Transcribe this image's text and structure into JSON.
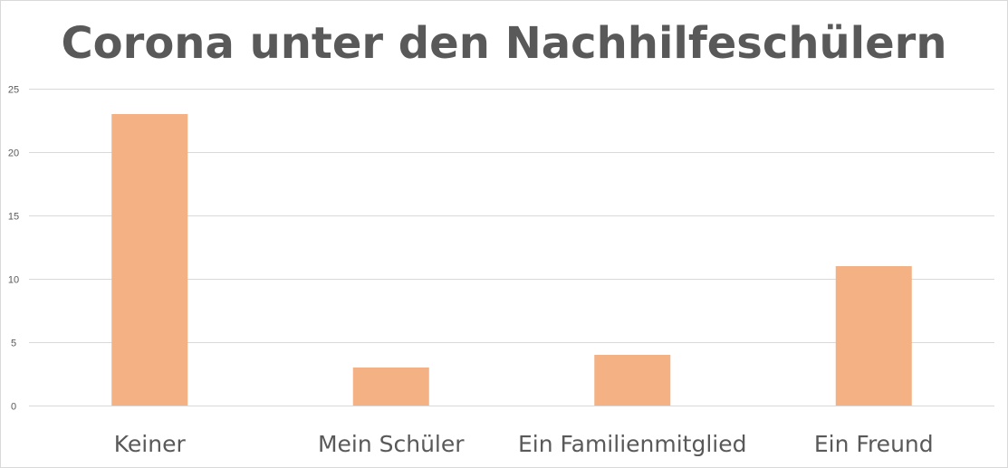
{
  "chart_data": {
    "type": "bar",
    "title": "Corona unter den Nachhilfeschülern",
    "xlabel": "",
    "ylabel": "",
    "categories": [
      "Keiner",
      "Mein Schüler",
      "Ein Familienmitglied",
      "Ein Freund"
    ],
    "values": [
      23,
      3,
      4,
      11
    ],
    "ylim": [
      0,
      25
    ],
    "yticks": [
      "0",
      "5",
      "10",
      "15",
      "20",
      "25"
    ],
    "grid": true,
    "legend": "none",
    "colors": {
      "bar": "#f4b183",
      "grid": "#d9d9d9",
      "text": "#595959"
    }
  }
}
